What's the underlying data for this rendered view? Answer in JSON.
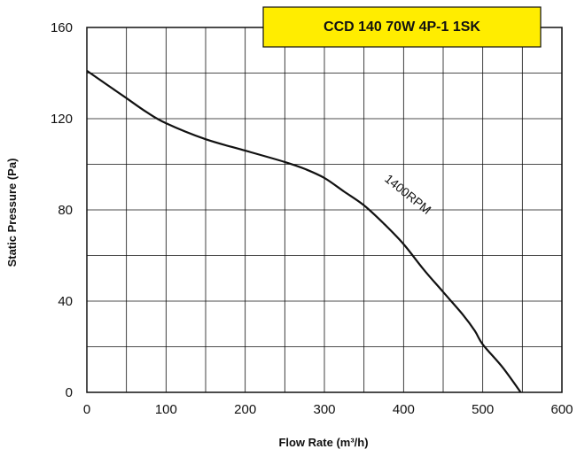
{
  "chart_data": {
    "type": "line",
    "title": "CCD 140 70W 4P-1 1SK",
    "title_box_color": "#ffed00",
    "xlabel": "Flow Rate (m³/h)",
    "ylabel": "Static Pressure (Pa)",
    "xlim": [
      0,
      600
    ],
    "ylim": [
      0,
      160
    ],
    "x_ticks": [
      0,
      100,
      200,
      300,
      400,
      500,
      600
    ],
    "y_ticks": [
      0,
      40,
      80,
      120,
      160
    ],
    "grid": true,
    "series": [
      {
        "name": "1400RPM",
        "color": "#111111",
        "x": [
          0,
          25,
          50,
          75,
          100,
          150,
          200,
          250,
          275,
          300,
          325,
          350,
          375,
          400,
          425,
          450,
          475,
          490,
          500,
          525,
          548
        ],
        "y": [
          141,
          135,
          129,
          123,
          118,
          111,
          106,
          101,
          98,
          94,
          88,
          82,
          74,
          65,
          54,
          44,
          34,
          27,
          21,
          11,
          0
        ]
      }
    ]
  }
}
